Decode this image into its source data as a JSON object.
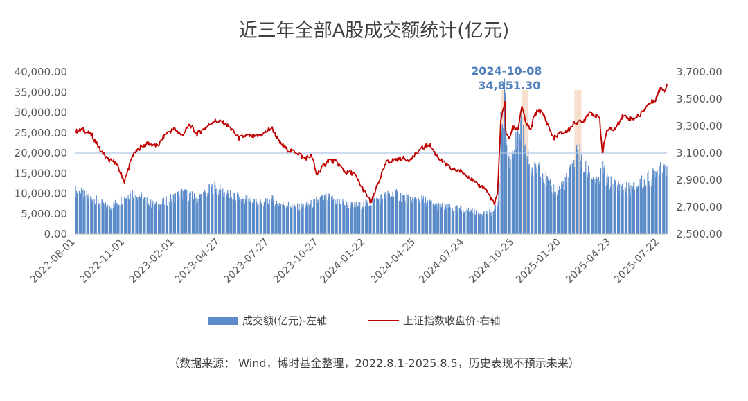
{
  "chart_data": {
    "type": "bar+line",
    "title": "近三年全部A股成交额统计(亿元)",
    "source": "（数据来源： Wind，博时基金整理，2022.8.1-2025.8.5，历史表现不预示未来）",
    "left_axis": {
      "label": "成交额(亿元)-左轴",
      "ylim": [
        0,
        40000
      ],
      "ticks": [
        "0.00",
        "5,000.00",
        "10,000.00",
        "15,000.00",
        "20,000.00",
        "25,000.00",
        "30,000.00",
        "35,000.00",
        "40,000.00"
      ]
    },
    "right_axis": {
      "label": "上证指数收盘价-右轴",
      "ylim": [
        2500,
        3700
      ],
      "ticks": [
        "2,500.00",
        "2,700.00",
        "2,900.00",
        "3,100.00",
        "3,300.00",
        "3,500.00",
        "3,700.00"
      ]
    },
    "x_tick_labels": [
      "2022-08-01",
      "2022-11-01",
      "2023-02-01",
      "2023-04-27",
      "2023-07-27",
      "2023-10-27",
      "2024-01-22",
      "2024-04-25",
      "2024-07-24",
      "2024-10-25",
      "2025-01-20",
      "2025-04-23",
      "2025-07-22"
    ],
    "reference_line": {
      "axis": "left",
      "value": 20000
    },
    "annotation": {
      "date": "2024-10-08",
      "date_label": "2024-10-08",
      "value_label": "34,851.30",
      "value": 34851.3
    },
    "highlight_bands": [
      {
        "from": "2024-09-30",
        "to": "2024-10-09"
      },
      {
        "from": "2024-11-08",
        "to": "2024-11-20"
      },
      {
        "from": "2025-02-14",
        "to": "2025-02-27"
      }
    ],
    "series": [
      {
        "name": "成交额(亿元)-左轴",
        "type": "bar",
        "axis": "left",
        "color": "#5b8bc9",
        "points": [
          [
            "2022-08-01",
            10600
          ],
          [
            "2022-08-15",
            9800
          ],
          [
            "2022-09-01",
            9000
          ],
          [
            "2022-09-15",
            7700
          ],
          [
            "2022-10-01",
            6500
          ],
          [
            "2022-10-15",
            7600
          ],
          [
            "2022-11-01",
            9000
          ],
          [
            "2022-11-15",
            10300
          ],
          [
            "2022-12-01",
            9200
          ],
          [
            "2022-12-15",
            7600
          ],
          [
            "2023-01-01",
            7000
          ],
          [
            "2023-01-15",
            8000
          ],
          [
            "2023-02-01",
            9100
          ],
          [
            "2023-02-15",
            10000
          ],
          [
            "2023-03-01",
            9500
          ],
          [
            "2023-03-15",
            8700
          ],
          [
            "2023-04-01",
            10200
          ],
          [
            "2023-04-15",
            11600
          ],
          [
            "2023-05-01",
            10300
          ],
          [
            "2023-05-15",
            9600
          ],
          [
            "2023-06-01",
            8800
          ],
          [
            "2023-06-15",
            8600
          ],
          [
            "2023-07-01",
            8200
          ],
          [
            "2023-07-15",
            7300
          ],
          [
            "2023-08-01",
            8400
          ],
          [
            "2023-08-15",
            7600
          ],
          [
            "2023-09-01",
            7200
          ],
          [
            "2023-09-15",
            6500
          ],
          [
            "2023-10-01",
            6900
          ],
          [
            "2023-10-15",
            7400
          ],
          [
            "2023-11-01",
            8600
          ],
          [
            "2023-11-15",
            8900
          ],
          [
            "2023-12-01",
            8100
          ],
          [
            "2023-12-15",
            7400
          ],
          [
            "2024-01-01",
            6900
          ],
          [
            "2024-01-15",
            7100
          ],
          [
            "2024-02-01",
            7800
          ],
          [
            "2024-02-15",
            8500
          ],
          [
            "2024-03-01",
            9400
          ],
          [
            "2024-03-15",
            9800
          ],
          [
            "2024-04-01",
            9300
          ],
          [
            "2024-04-15",
            8400
          ],
          [
            "2024-05-01",
            8700
          ],
          [
            "2024-05-15",
            7900
          ],
          [
            "2024-06-01",
            7000
          ],
          [
            "2024-06-15",
            6700
          ],
          [
            "2024-07-01",
            6300
          ],
          [
            "2024-07-15",
            6100
          ],
          [
            "2024-08-01",
            5900
          ],
          [
            "2024-08-15",
            5300
          ],
          [
            "2024-09-01",
            5200
          ],
          [
            "2024-09-15",
            5300
          ],
          [
            "2024-09-24",
            7000
          ],
          [
            "2024-09-27",
            14000
          ],
          [
            "2024-09-30",
            26000
          ],
          [
            "2024-10-08",
            34851
          ],
          [
            "2024-10-09",
            24000
          ],
          [
            "2024-10-15",
            18000
          ],
          [
            "2024-10-22",
            21000
          ],
          [
            "2024-11-01",
            23000
          ],
          [
            "2024-11-08",
            27000
          ],
          [
            "2024-11-15",
            21000
          ],
          [
            "2024-11-25",
            16000
          ],
          [
            "2024-12-01",
            15500
          ],
          [
            "2024-12-10",
            17500
          ],
          [
            "2024-12-20",
            14000
          ],
          [
            "2025-01-01",
            11500
          ],
          [
            "2025-01-15",
            11000
          ],
          [
            "2025-02-01",
            13500
          ],
          [
            "2025-02-15",
            18000
          ],
          [
            "2025-02-21",
            21500
          ],
          [
            "2025-03-01",
            16000
          ],
          [
            "2025-03-15",
            15000
          ],
          [
            "2025-04-01",
            12000
          ],
          [
            "2025-04-07",
            17000
          ],
          [
            "2025-04-15",
            13000
          ],
          [
            "2025-05-01",
            12000
          ],
          [
            "2025-05-15",
            11500
          ],
          [
            "2025-06-01",
            11000
          ],
          [
            "2025-06-15",
            12500
          ],
          [
            "2025-07-01",
            13500
          ],
          [
            "2025-07-15",
            14500
          ],
          [
            "2025-07-25",
            17500
          ],
          [
            "2025-08-05",
            17000
          ]
        ]
      },
      {
        "name": "上证指数收盘价-右轴",
        "type": "line",
        "axis": "right",
        "color": "#c00000",
        "points": [
          [
            "2022-08-01",
            3260
          ],
          [
            "2022-08-15",
            3275
          ],
          [
            "2022-09-01",
            3230
          ],
          [
            "2022-09-15",
            3130
          ],
          [
            "2022-10-01",
            3050
          ],
          [
            "2022-10-15",
            3030
          ],
          [
            "2022-10-31",
            2890
          ],
          [
            "2022-11-15",
            3080
          ],
          [
            "2022-12-01",
            3150
          ],
          [
            "2022-12-15",
            3170
          ],
          [
            "2023-01-01",
            3150
          ],
          [
            "2023-01-15",
            3240
          ],
          [
            "2023-02-01",
            3280
          ],
          [
            "2023-02-15",
            3230
          ],
          [
            "2023-03-01",
            3310
          ],
          [
            "2023-03-15",
            3240
          ],
          [
            "2023-04-01",
            3290
          ],
          [
            "2023-04-15",
            3340
          ],
          [
            "2023-05-01",
            3330
          ],
          [
            "2023-05-15",
            3290
          ],
          [
            "2023-06-01",
            3210
          ],
          [
            "2023-06-15",
            3230
          ],
          [
            "2023-07-01",
            3220
          ],
          [
            "2023-07-15",
            3240
          ],
          [
            "2023-08-01",
            3290
          ],
          [
            "2023-08-15",
            3180
          ],
          [
            "2023-09-01",
            3120
          ],
          [
            "2023-09-15",
            3110
          ],
          [
            "2023-10-01",
            3060
          ],
          [
            "2023-10-15",
            3080
          ],
          [
            "2023-10-23",
            2940
          ],
          [
            "2023-11-15",
            3050
          ],
          [
            "2023-12-01",
            3030
          ],
          [
            "2023-12-15",
            2960
          ],
          [
            "2024-01-01",
            2950
          ],
          [
            "2024-01-15",
            2850
          ],
          [
            "2024-02-02",
            2730
          ],
          [
            "2024-02-15",
            2880
          ],
          [
            "2024-03-01",
            3030
          ],
          [
            "2024-03-15",
            3050
          ],
          [
            "2024-04-01",
            3060
          ],
          [
            "2024-04-15",
            3050
          ],
          [
            "2024-05-01",
            3120
          ],
          [
            "2024-05-20",
            3170
          ],
          [
            "2024-06-01",
            3090
          ],
          [
            "2024-06-15",
            3030
          ],
          [
            "2024-07-01",
            2980
          ],
          [
            "2024-07-15",
            2970
          ],
          [
            "2024-08-01",
            2930
          ],
          [
            "2024-08-15",
            2870
          ],
          [
            "2024-09-01",
            2840
          ],
          [
            "2024-09-18",
            2720
          ],
          [
            "2024-09-24",
            2790
          ],
          [
            "2024-09-27",
            3090
          ],
          [
            "2024-09-30",
            3340
          ],
          [
            "2024-10-08",
            3490
          ],
          [
            "2024-10-09",
            3260
          ],
          [
            "2024-10-15",
            3200
          ],
          [
            "2024-10-22",
            3290
          ],
          [
            "2024-11-01",
            3280
          ],
          [
            "2024-11-08",
            3450
          ],
          [
            "2024-11-15",
            3330
          ],
          [
            "2024-11-25",
            3270
          ],
          [
            "2024-12-01",
            3380
          ],
          [
            "2024-12-10",
            3420
          ],
          [
            "2024-12-20",
            3370
          ],
          [
            "2025-01-06",
            3210
          ],
          [
            "2025-01-15",
            3240
          ],
          [
            "2025-02-01",
            3260
          ],
          [
            "2025-02-15",
            3330
          ],
          [
            "2025-03-01",
            3330
          ],
          [
            "2025-03-15",
            3410
          ],
          [
            "2025-04-02",
            3350
          ],
          [
            "2025-04-07",
            3100
          ],
          [
            "2025-04-15",
            3270
          ],
          [
            "2025-05-01",
            3280
          ],
          [
            "2025-05-15",
            3380
          ],
          [
            "2025-06-01",
            3350
          ],
          [
            "2025-06-15",
            3380
          ],
          [
            "2025-07-01",
            3460
          ],
          [
            "2025-07-15",
            3500
          ],
          [
            "2025-07-25",
            3590
          ],
          [
            "2025-08-01",
            3560
          ],
          [
            "2025-08-05",
            3617
          ]
        ]
      }
    ]
  }
}
